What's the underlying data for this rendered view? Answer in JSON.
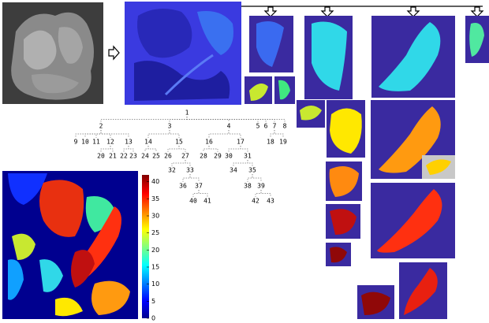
{
  "tree": {
    "nodes": [
      "1",
      "2",
      "3",
      "4",
      "5",
      "6",
      "7",
      "8",
      "9",
      "10",
      "11",
      "12",
      "13",
      "14",
      "15",
      "16",
      "17",
      "18",
      "19",
      "20",
      "21",
      "22",
      "23",
      "24",
      "25",
      "26",
      "27",
      "28",
      "29",
      "30",
      "31",
      "32",
      "33",
      "34",
      "35",
      "36",
      "37",
      "38",
      "39",
      "40",
      "41",
      "42",
      "43"
    ]
  },
  "colorbar": {
    "lim": [
      0,
      42
    ],
    "ticks": [
      0,
      5,
      10,
      15,
      20,
      25,
      30,
      35,
      40
    ]
  }
}
